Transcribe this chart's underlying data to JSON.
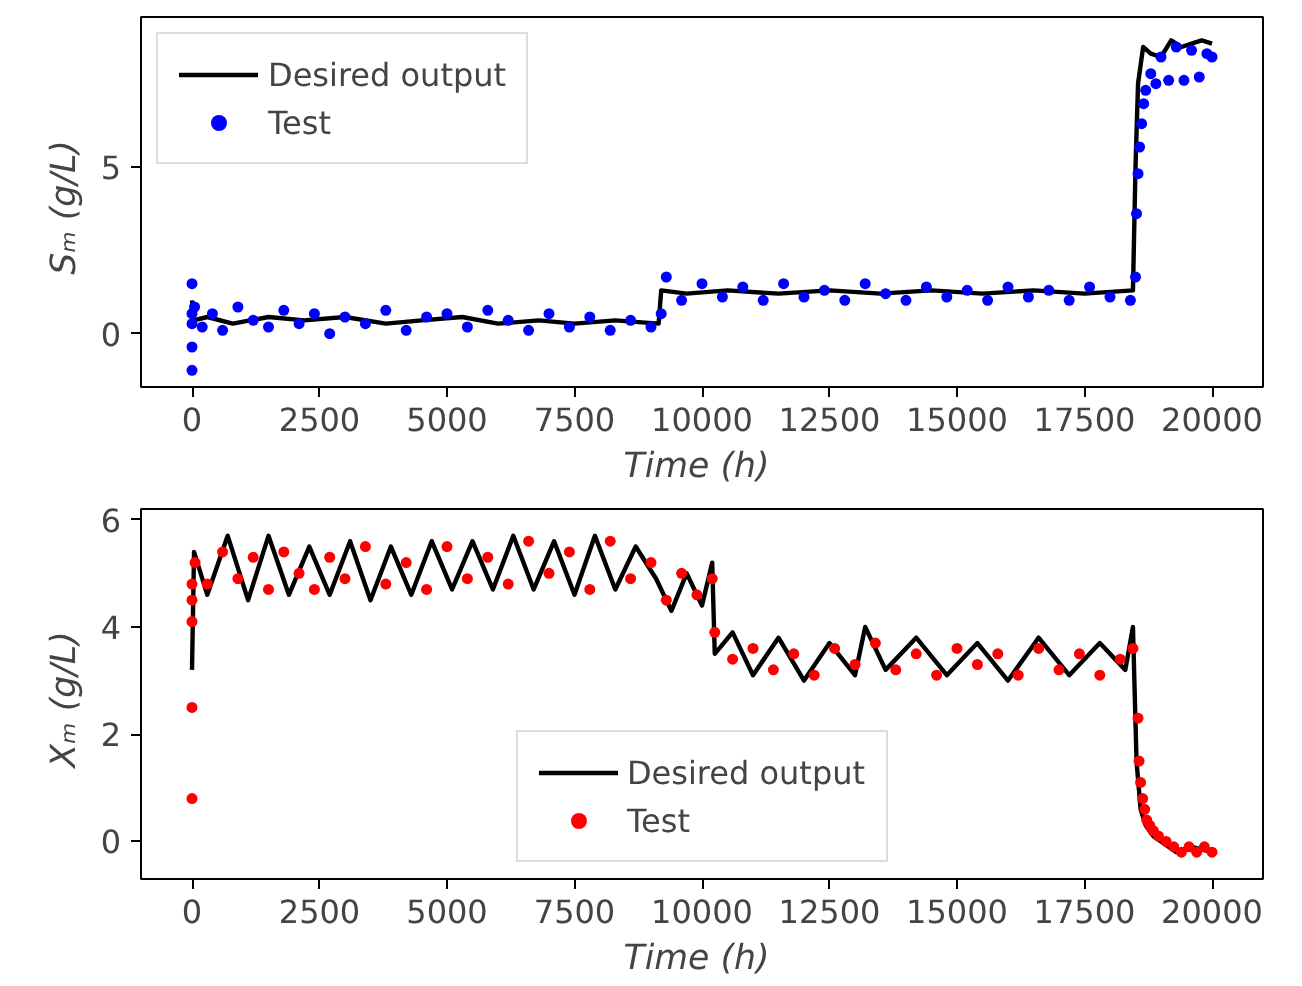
{
  "chart_data": [
    {
      "type": "line",
      "xlabel": "Time  (h)",
      "ylabel": "Sₘ  (g/L)",
      "xlim": [
        -1000,
        21000
      ],
      "ylim": [
        -1.6,
        9.5
      ],
      "xticks": [
        0,
        2500,
        5000,
        7500,
        10000,
        12500,
        15000,
        17500,
        20000
      ],
      "yticks": [
        0,
        5
      ],
      "grid": false,
      "legend": "top left",
      "series": [
        {
          "name": "Desired output",
          "color": "#000000",
          "line_style": "solid",
          "x": [
            0,
            30,
            300,
            800,
            1500,
            2200,
            3000,
            3800,
            4500,
            5300,
            6000,
            6800,
            7500,
            8300,
            9150,
            9200,
            9700,
            10500,
            11500,
            12500,
            13500,
            14500,
            15500,
            16500,
            17500,
            18450,
            18500,
            18550,
            18650,
            18800,
            19000,
            19200,
            19400,
            19600,
            19800,
            20000
          ],
          "values": [
            1.0,
            0.4,
            0.5,
            0.3,
            0.5,
            0.4,
            0.5,
            0.3,
            0.4,
            0.5,
            0.3,
            0.4,
            0.3,
            0.4,
            0.3,
            1.3,
            1.2,
            1.3,
            1.2,
            1.3,
            1.2,
            1.3,
            1.2,
            1.3,
            1.2,
            1.3,
            5.0,
            7.5,
            8.6,
            8.4,
            8.3,
            8.8,
            8.6,
            8.7,
            8.8,
            8.7
          ]
        },
        {
          "name": "Test",
          "type": "scatter",
          "marker": "circle",
          "color": "#0000ff",
          "x": [
            0,
            0,
            0,
            0,
            0,
            50,
            200,
            400,
            600,
            900,
            1200,
            1500,
            1800,
            2100,
            2400,
            2700,
            3000,
            3400,
            3800,
            4200,
            4600,
            5000,
            5400,
            5800,
            6200,
            6600,
            7000,
            7400,
            7800,
            8200,
            8600,
            9000,
            9200,
            9300,
            9600,
            10000,
            10400,
            10800,
            11200,
            11600,
            12000,
            12400,
            12800,
            13200,
            13600,
            14000,
            14400,
            14800,
            15200,
            15600,
            16000,
            16400,
            16800,
            17200,
            17600,
            18000,
            18400,
            18500,
            18520,
            18550,
            18580,
            18620,
            18660,
            18700,
            18800,
            18900,
            19000,
            19150,
            19300,
            19450,
            19600,
            19750,
            19900,
            20000
          ],
          "values": [
            -1.1,
            -0.4,
            1.5,
            0.3,
            0.6,
            0.8,
            0.2,
            0.6,
            0.1,
            0.8,
            0.4,
            0.2,
            0.7,
            0.3,
            0.6,
            0.0,
            0.5,
            0.3,
            0.7,
            0.1,
            0.5,
            0.6,
            0.2,
            0.7,
            0.4,
            0.1,
            0.6,
            0.2,
            0.5,
            0.1,
            0.4,
            0.2,
            0.6,
            1.7,
            1.0,
            1.5,
            1.1,
            1.4,
            1.0,
            1.5,
            1.1,
            1.3,
            1.0,
            1.5,
            1.2,
            1.0,
            1.4,
            1.1,
            1.3,
            1.0,
            1.4,
            1.1,
            1.3,
            1.0,
            1.4,
            1.1,
            1.0,
            1.7,
            3.6,
            4.8,
            5.6,
            6.3,
            6.9,
            7.3,
            7.8,
            7.5,
            8.3,
            7.6,
            8.6,
            7.6,
            8.5,
            7.7,
            8.4,
            8.3
          ]
        }
      ]
    },
    {
      "type": "line",
      "xlabel": "Time  (h)",
      "ylabel": "Xₘ  (g/L)",
      "xlim": [
        -1000,
        21000
      ],
      "ylim": [
        -0.7,
        6.2
      ],
      "xticks": [
        0,
        2500,
        5000,
        7500,
        10000,
        12500,
        15000,
        17500,
        20000
      ],
      "yticks": [
        0,
        2,
        4,
        6
      ],
      "grid": false,
      "legend": "bottom",
      "series": [
        {
          "name": "Desired output",
          "color": "#000000",
          "line_style": "solid",
          "x": [
            0,
            40,
            300,
            700,
            1100,
            1500,
            1900,
            2300,
            2700,
            3100,
            3500,
            3900,
            4300,
            4700,
            5100,
            5500,
            5900,
            6300,
            6700,
            7100,
            7500,
            7900,
            8300,
            8700,
            9100,
            9400,
            9700,
            10000,
            10200,
            10250,
            10600,
            11000,
            11500,
            12000,
            12500,
            13000,
            13200,
            13600,
            14200,
            14800,
            15400,
            16000,
            16600,
            17200,
            17800,
            18300,
            18450,
            18520,
            18600,
            18700,
            18850,
            19000,
            19300,
            19600,
            20000
          ],
          "values": [
            3.2,
            5.4,
            4.6,
            5.7,
            4.5,
            5.7,
            4.6,
            5.5,
            4.6,
            5.6,
            4.5,
            5.5,
            4.6,
            5.6,
            4.7,
            5.6,
            4.7,
            5.7,
            4.7,
            5.6,
            4.6,
            5.7,
            4.7,
            5.5,
            4.9,
            4.3,
            5.0,
            4.4,
            5.2,
            3.5,
            3.9,
            3.1,
            3.8,
            3.0,
            3.7,
            3.1,
            4.0,
            3.2,
            3.8,
            3.1,
            3.7,
            3.0,
            3.8,
            3.1,
            3.7,
            3.2,
            4.0,
            1.5,
            0.6,
            0.3,
            0.1,
            0.0,
            -0.2,
            -0.1,
            -0.2
          ]
        },
        {
          "name": "Test",
          "type": "scatter",
          "marker": "circle",
          "color": "#ff0000",
          "x": [
            0,
            0,
            0,
            0,
            0,
            60,
            300,
            600,
            900,
            1200,
            1500,
            1800,
            2100,
            2400,
            2700,
            3000,
            3400,
            3800,
            4200,
            4600,
            5000,
            5400,
            5800,
            6200,
            6600,
            7000,
            7400,
            7800,
            8200,
            8600,
            9000,
            9300,
            9600,
            9900,
            10200,
            10250,
            10600,
            11000,
            11400,
            11800,
            12200,
            12600,
            13000,
            13400,
            13800,
            14200,
            14600,
            15000,
            15400,
            15800,
            16200,
            16600,
            17000,
            17400,
            17800,
            18200,
            18450,
            18550,
            18570,
            18600,
            18640,
            18680,
            18720,
            18780,
            18850,
            18950,
            19100,
            19250,
            19400,
            19550,
            19700,
            19850,
            20000
          ],
          "values": [
            0.8,
            2.5,
            4.1,
            4.5,
            4.8,
            5.2,
            4.8,
            5.4,
            4.9,
            5.3,
            4.7,
            5.4,
            5.0,
            4.7,
            5.3,
            4.9,
            5.5,
            4.8,
            5.2,
            4.7,
            5.5,
            4.9,
            5.3,
            4.8,
            5.6,
            5.0,
            5.4,
            4.7,
            5.6,
            4.9,
            5.2,
            4.5,
            5.0,
            4.6,
            4.9,
            3.9,
            3.4,
            3.6,
            3.2,
            3.5,
            3.1,
            3.6,
            3.3,
            3.7,
            3.2,
            3.5,
            3.1,
            3.6,
            3.3,
            3.5,
            3.1,
            3.6,
            3.2,
            3.5,
            3.1,
            3.4,
            3.6,
            2.3,
            1.5,
            1.1,
            0.8,
            0.6,
            0.4,
            0.3,
            0.2,
            0.1,
            0.0,
            -0.1,
            -0.2,
            -0.1,
            -0.2,
            -0.1,
            -0.2
          ]
        }
      ]
    }
  ]
}
